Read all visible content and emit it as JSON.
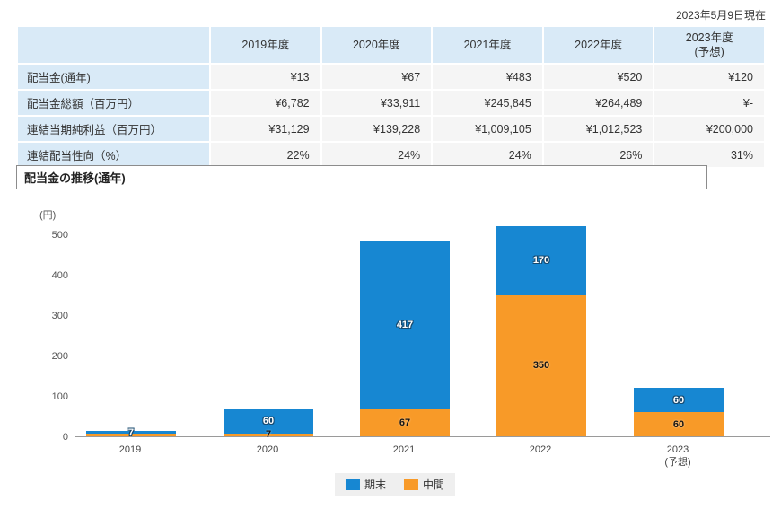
{
  "page": {
    "as_of": "2023年5月9日現在"
  },
  "table": {
    "corner": "",
    "columns": [
      {
        "label": "2019年度",
        "sublabel": ""
      },
      {
        "label": "2020年度",
        "sublabel": ""
      },
      {
        "label": "2021年度",
        "sublabel": ""
      },
      {
        "label": "2022年度",
        "sublabel": ""
      },
      {
        "label": "2023年度",
        "sublabel": "(予想)"
      }
    ],
    "rows": [
      {
        "label": "配当金(通年)",
        "values": [
          "¥13",
          "¥67",
          "¥483",
          "¥520",
          "¥120"
        ]
      },
      {
        "label": "配当金総額（百万円）",
        "values": [
          "¥6,782",
          "¥33,911",
          "¥245,845",
          "¥264,489",
          "¥-"
        ]
      },
      {
        "label": "連結当期純利益（百万円）",
        "values": [
          "¥31,129",
          "¥139,228",
          "¥1,009,105",
          "¥1,012,523",
          "¥200,000"
        ]
      },
      {
        "label": "連結配当性向（%）",
        "values": [
          "22%",
          "24%",
          "24%",
          "26%",
          "31%"
        ]
      }
    ]
  },
  "section": {
    "title": "配当金の推移(通年)"
  },
  "chart_data": {
    "type": "bar",
    "stacked": true,
    "title": "配当金の推移(通年)",
    "unit_label": "(円)",
    "xlabel": "",
    "ylabel": "円",
    "categories": [
      {
        "label": "2019",
        "sublabel": ""
      },
      {
        "label": "2020",
        "sublabel": ""
      },
      {
        "label": "2021",
        "sublabel": ""
      },
      {
        "label": "2022",
        "sublabel": ""
      },
      {
        "label": "2023",
        "sublabel": "(予想)"
      }
    ],
    "series": [
      {
        "name": "中間",
        "color": "#f89a28",
        "label_style": "dark",
        "values": [
          6,
          7,
          67,
          350,
          60
        ],
        "labels": [
          "",
          "7",
          "67",
          "350",
          "60"
        ]
      },
      {
        "name": "期末",
        "color": "#1787d2",
        "label_style": "light",
        "values": [
          7,
          60,
          417,
          170,
          60
        ],
        "labels": [
          "7",
          "60",
          "417",
          "170",
          "60"
        ]
      }
    ],
    "ylim": [
      0,
      533
    ],
    "yticks": [
      0,
      100,
      200,
      300,
      400,
      500
    ],
    "grid": false,
    "legend": {
      "position": "bottom",
      "order": [
        "期末",
        "中間"
      ]
    }
  }
}
